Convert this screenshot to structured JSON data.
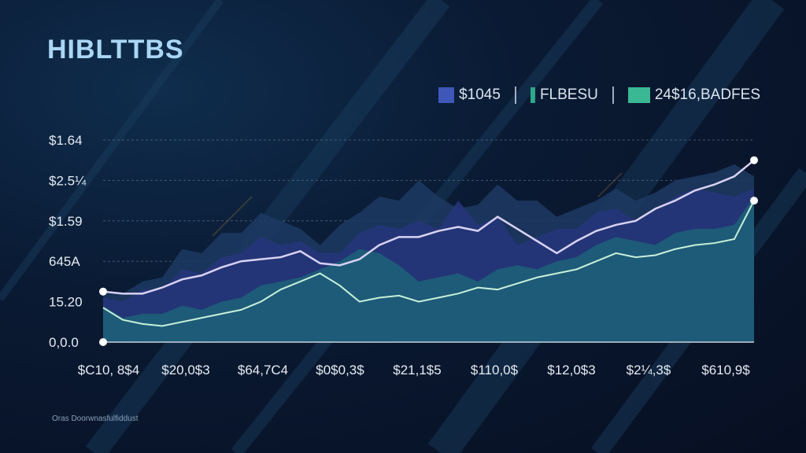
{
  "title": "HIBLTTBS",
  "footnote": "Oras Doorwnasfulfiddust",
  "legend": {
    "items": [
      {
        "label": "$1045",
        "color": "#3f57b8"
      },
      {
        "label": "FLBESU",
        "color": "#2fa58a"
      },
      {
        "label": "24$16,BADFES",
        "color": "#3ab894"
      }
    ]
  },
  "colors": {
    "background": "#081428",
    "area_back": "#1d3a63",
    "area_mid": "#26357a",
    "area_front": "#1d5f78",
    "line_upper": "#d8d2f4",
    "line_lower": "#c8f0da",
    "grid": "#5e6f86"
  },
  "chart_data": {
    "type": "area",
    "title": "HIBLTTBS",
    "xlabel": "",
    "ylabel": "",
    "ylim": [
      0,
      5
    ],
    "grid": true,
    "legend_position": "top-right",
    "y_tick_labels": [
      "0,0.0",
      "15.20",
      "645A",
      "$1.59",
      "$2.5¼",
      "$1.64"
    ],
    "x_tick_labels": [
      "$C10, 8$4",
      "$20,0$3",
      "$64,7C4",
      "$0$0,3$",
      "$21,1$5",
      "$110,0$",
      "$12,0$3",
      "$2¼,3$",
      "$610,9$"
    ],
    "x": [
      0,
      0.25,
      0.5,
      0.75,
      1,
      1.25,
      1.5,
      1.75,
      2,
      2.25,
      2.5,
      2.75,
      3,
      3.25,
      3.5,
      3.75,
      4,
      4.25,
      4.5,
      4.75,
      5,
      5.25,
      5.5,
      5.75,
      6,
      6.25,
      6.5,
      6.75,
      7,
      7.25,
      7.5,
      7.75,
      8,
      8.25
    ],
    "series": [
      {
        "role": "background-area",
        "values": [
          1.2,
          1.2,
          1.5,
          1.6,
          2.3,
          2.2,
          2.7,
          2.7,
          3.2,
          3.0,
          2.8,
          2.4,
          2.9,
          3.2,
          3.6,
          3.5,
          4.0,
          3.6,
          3.3,
          3.4,
          3.9,
          3.5,
          3.5,
          3.1,
          3.3,
          3.5,
          3.8,
          3.5,
          3.7,
          4.0,
          4.1,
          4.2,
          4.4,
          4.1
        ]
      },
      {
        "role": "middle-area",
        "values": [
          1.1,
          1.0,
          1.3,
          1.3,
          1.8,
          1.7,
          2.1,
          2.2,
          2.6,
          2.4,
          2.5,
          2.2,
          2.2,
          2.7,
          2.9,
          2.8,
          3.0,
          2.8,
          3.5,
          2.9,
          3.1,
          2.4,
          2.6,
          2.8,
          2.8,
          3.2,
          3.3,
          3.0,
          3.3,
          3.6,
          3.8,
          3.7,
          3.6,
          3.8
        ]
      },
      {
        "role": "front-area",
        "values": [
          0.9,
          0.6,
          0.7,
          0.7,
          0.9,
          0.8,
          1.0,
          1.1,
          1.4,
          1.5,
          1.6,
          1.8,
          2.0,
          2.3,
          2.2,
          1.9,
          1.5,
          1.6,
          1.7,
          1.5,
          1.8,
          1.9,
          1.8,
          2.0,
          2.1,
          2.4,
          2.6,
          2.5,
          2.4,
          2.7,
          2.8,
          2.8,
          2.9,
          3.6
        ]
      },
      {
        "role": "upper-line",
        "values": [
          1.25,
          1.2,
          1.2,
          1.35,
          1.55,
          1.65,
          1.85,
          2.0,
          2.05,
          2.1,
          2.25,
          1.95,
          1.9,
          2.05,
          2.4,
          2.6,
          2.6,
          2.75,
          2.85,
          2.75,
          3.1,
          2.8,
          2.5,
          2.2,
          2.5,
          2.75,
          2.9,
          3.0,
          3.3,
          3.5,
          3.75,
          3.9,
          4.1,
          4.5
        ]
      },
      {
        "role": "lower-line",
        "values": [
          0.85,
          0.55,
          0.45,
          0.4,
          0.5,
          0.6,
          0.7,
          0.8,
          1.0,
          1.3,
          1.5,
          1.7,
          1.4,
          1.0,
          1.1,
          1.15,
          1.0,
          1.1,
          1.2,
          1.35,
          1.3,
          1.45,
          1.6,
          1.7,
          1.8,
          2.0,
          2.2,
          2.1,
          2.15,
          2.3,
          2.4,
          2.45,
          2.55,
          3.5
        ]
      }
    ]
  }
}
